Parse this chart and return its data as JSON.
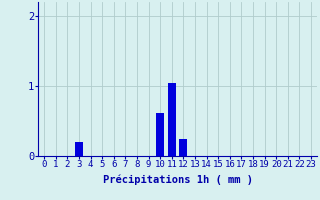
{
  "hours": [
    0,
    1,
    2,
    3,
    4,
    5,
    6,
    7,
    8,
    9,
    10,
    11,
    12,
    13,
    14,
    15,
    16,
    17,
    18,
    19,
    20,
    21,
    22,
    23
  ],
  "values": [
    0,
    0,
    0,
    0.2,
    0,
    0,
    0,
    0,
    0,
    0,
    0.62,
    1.05,
    0.25,
    0,
    0,
    0,
    0,
    0,
    0,
    0,
    0,
    0,
    0,
    0
  ],
  "bar_color": "#0000dd",
  "background_color": "#d8f0f0",
  "grid_color": "#b0cccc",
  "axis_color": "#0000aa",
  "tick_color": "#0000aa",
  "xlabel": "Précipitations 1h ( mm )",
  "xlabel_fontsize": 7.5,
  "tick_fontsize": 6.5,
  "ytick_fontsize": 7.5,
  "yticks": [
    0,
    1,
    2
  ],
  "ylim": [
    0,
    2.2
  ],
  "xlim": [
    -0.5,
    23.5
  ],
  "bar_width": 0.7
}
